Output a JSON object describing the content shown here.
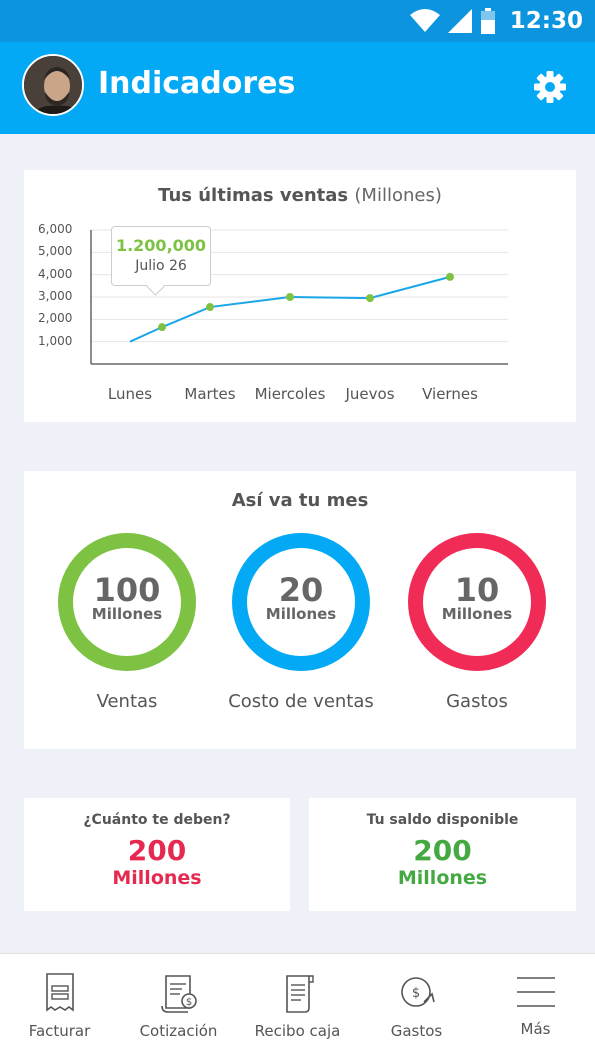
{
  "status_bar": {
    "time": "12:30"
  },
  "header": {
    "title": "Indicadores"
  },
  "sales_card": {
    "title": "Tus últimas ventas",
    "title_unit": "(Millones)",
    "tooltip": {
      "value": "1.200,000",
      "date": "Julio 26"
    },
    "chart_data": {
      "type": "line",
      "title": "Tus últimas ventas (Millones)",
      "categories": [
        "Lunes",
        "Martes",
        "Miercoles",
        "Juevos",
        "Viernes"
      ],
      "yticks": [
        "6,000",
        "5,000",
        "4,000",
        "3,000",
        "2,000",
        "1,000"
      ],
      "ylim": [
        0,
        6000
      ],
      "line": [
        {
          "x": 0.0,
          "y": 1000
        },
        {
          "x": 0.4,
          "y": 1650
        },
        {
          "x": 1.0,
          "y": 2550
        },
        {
          "x": 2.0,
          "y": 3000
        },
        {
          "x": 3.0,
          "y": 2950
        },
        {
          "x": 4.0,
          "y": 3900
        }
      ],
      "points": [
        {
          "x": 0.4,
          "y": 1650
        },
        {
          "x": 1.0,
          "y": 2550
        },
        {
          "x": 2.0,
          "y": 3000
        },
        {
          "x": 3.0,
          "y": 2950
        },
        {
          "x": 4.0,
          "y": 3900
        }
      ],
      "grid": true,
      "legend": "none"
    }
  },
  "month_card": {
    "title": "Así va tu mes",
    "rings": [
      {
        "value": "100",
        "unit": "Millones",
        "label": "Ventas",
        "color": "#7dc242"
      },
      {
        "value": "20",
        "unit": "Millones",
        "label": "Costo de ventas",
        "color": "#03a9f4"
      },
      {
        "value": "10",
        "unit": "Millones",
        "label": "Gastos",
        "color": "#f02c56"
      }
    ]
  },
  "debt_card": {
    "title": "¿Cuánto te deben?",
    "value": "200",
    "unit": "Millones",
    "color": "#e5294f"
  },
  "balance_card": {
    "title": "Tu saldo disponible",
    "value": "200",
    "unit": "Millones",
    "color": "#45a942"
  },
  "bottom_nav": [
    {
      "label": "Facturar",
      "icon": "invoice-icon"
    },
    {
      "label": "Cotización",
      "icon": "quote-icon"
    },
    {
      "label": "Recibo caja",
      "icon": "receipt-icon"
    },
    {
      "label": "Gastos",
      "icon": "expenses-icon"
    },
    {
      "label": "Más",
      "icon": "menu-icon"
    }
  ],
  "colors": {
    "status_bar": "#0c95de",
    "app_bar": "#03a9f4",
    "background": "#eef2f8",
    "line": "#1ba6e8",
    "point": "#7dc242"
  }
}
